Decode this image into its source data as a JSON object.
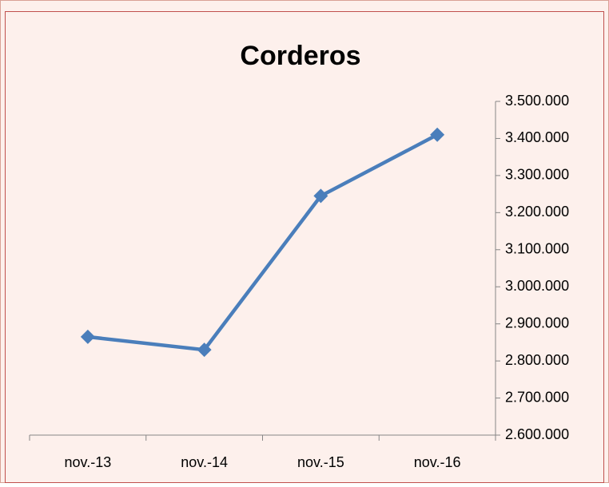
{
  "chart_data": {
    "type": "line",
    "title": "Corderos",
    "categories": [
      "nov.-13",
      "nov.-14",
      "nov.-15",
      "nov.-16"
    ],
    "series": [
      {
        "name": "Corderos",
        "color": "#4a7ebb",
        "values": [
          2865000,
          2830000,
          3245000,
          3410000
        ]
      }
    ],
    "ylim": [
      2600000,
      3500000
    ],
    "yticks": [
      {
        "value": 2600000,
        "label": "2.600.000"
      },
      {
        "value": 2700000,
        "label": "2.700.000"
      },
      {
        "value": 2800000,
        "label": "2.800.000"
      },
      {
        "value": 2900000,
        "label": "2.900.000"
      },
      {
        "value": 3000000,
        "label": "3.000.000"
      },
      {
        "value": 3100000,
        "label": "3.100.000"
      },
      {
        "value": 3200000,
        "label": "3.200.000"
      },
      {
        "value": 3300000,
        "label": "3.300.000"
      },
      {
        "value": 3400000,
        "label": "3.400.000"
      },
      {
        "value": 3500000,
        "label": "3.500.000"
      }
    ],
    "y_axis_side": "right",
    "grid": false
  }
}
